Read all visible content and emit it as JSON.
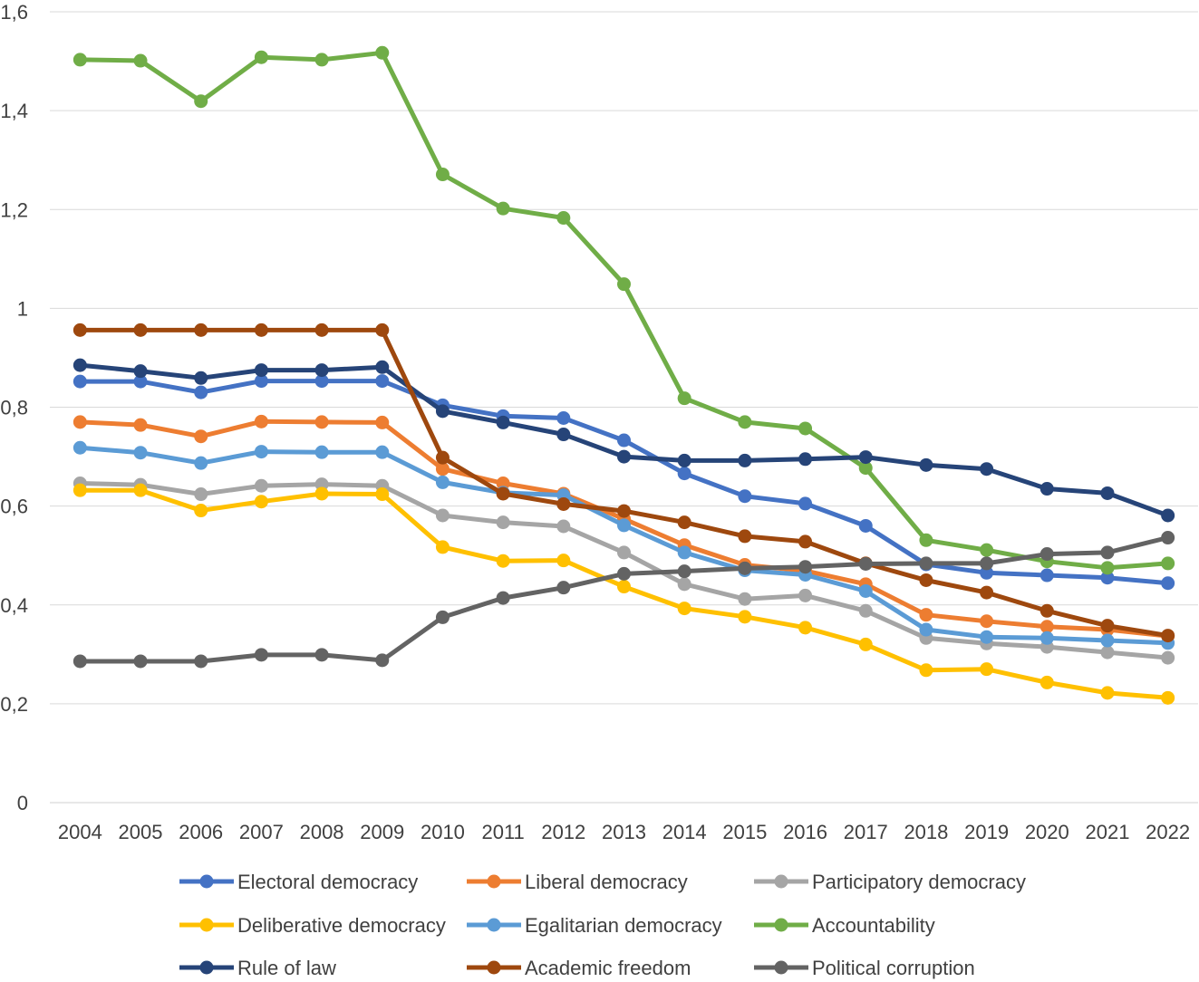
{
  "chart_data": {
    "type": "line",
    "title": "",
    "xlabel": "",
    "ylabel": "",
    "ylim": [
      0,
      1.6
    ],
    "y_ticks": [
      "0",
      "0,2",
      "0,4",
      "0,6",
      "0,8",
      "1",
      "1,2",
      "1,4",
      "1,6"
    ],
    "grid": true,
    "legend_position": "bottom",
    "categories": [
      "2004",
      "2005",
      "2006",
      "2007",
      "2008",
      "2009",
      "2010",
      "2011",
      "2012",
      "2013",
      "2014",
      "2015",
      "2016",
      "2017",
      "2018",
      "2019",
      "2020",
      "2021",
      "2022"
    ],
    "series": [
      {
        "name": "Electoral democracy",
        "color": "#4472C4",
        "values": [
          0.852,
          0.852,
          0.83,
          0.853,
          0.853,
          0.853,
          0.804,
          0.782,
          0.778,
          0.733,
          0.666,
          0.62,
          0.605,
          0.56,
          0.482,
          0.465,
          0.46,
          0.455,
          0.444
        ]
      },
      {
        "name": "Liberal democracy",
        "color": "#ED7D31",
        "values": [
          0.77,
          0.764,
          0.741,
          0.771,
          0.77,
          0.769,
          0.675,
          0.646,
          0.625,
          0.574,
          0.521,
          0.481,
          0.469,
          0.442,
          0.38,
          0.367,
          0.356,
          0.35,
          0.337
        ]
      },
      {
        "name": "Participatory democracy",
        "color": "#A5A5A5",
        "values": [
          0.646,
          0.643,
          0.624,
          0.641,
          0.644,
          0.641,
          0.581,
          0.567,
          0.559,
          0.506,
          0.442,
          0.412,
          0.419,
          0.388,
          0.333,
          0.322,
          0.315,
          0.304,
          0.293
        ]
      },
      {
        "name": "Deliberative democracy",
        "color": "#FFC000",
        "values": [
          0.632,
          0.632,
          0.591,
          0.609,
          0.625,
          0.624,
          0.517,
          0.489,
          0.49,
          0.437,
          0.393,
          0.376,
          0.354,
          0.32,
          0.268,
          0.27,
          0.243,
          0.222,
          0.212
        ]
      },
      {
        "name": "Egalitarian democracy",
        "color": "#5B9BD5",
        "values": [
          0.718,
          0.708,
          0.687,
          0.71,
          0.709,
          0.709,
          0.648,
          0.627,
          0.622,
          0.561,
          0.506,
          0.47,
          0.461,
          0.428,
          0.35,
          0.335,
          0.333,
          0.328,
          0.323
        ]
      },
      {
        "name": "Accountability",
        "color": "#70AD47",
        "values": [
          1.503,
          1.501,
          1.419,
          1.508,
          1.503,
          1.517,
          1.271,
          1.202,
          1.183,
          1.049,
          0.818,
          0.77,
          0.757,
          0.677,
          0.531,
          0.511,
          0.488,
          0.475,
          0.484
        ]
      },
      {
        "name": "Rule of law",
        "color": "#264478",
        "values": [
          0.885,
          0.873,
          0.859,
          0.875,
          0.875,
          0.881,
          0.792,
          0.769,
          0.745,
          0.7,
          0.692,
          0.692,
          0.695,
          0.699,
          0.683,
          0.675,
          0.635,
          0.626,
          0.581
        ]
      },
      {
        "name": "Academic freedom",
        "color": "#9E480E",
        "values": [
          0.956,
          0.956,
          0.956,
          0.956,
          0.956,
          0.956,
          0.698,
          0.625,
          0.604,
          0.59,
          0.567,
          0.539,
          0.528,
          0.484,
          0.45,
          0.425,
          0.388,
          0.358,
          0.338
        ]
      },
      {
        "name": "Political corruption",
        "color": "#636363",
        "values": [
          0.286,
          0.286,
          0.286,
          0.299,
          0.299,
          0.288,
          0.375,
          0.414,
          0.435,
          0.463,
          0.468,
          0.474,
          0.477,
          0.483,
          0.484,
          0.484,
          0.503,
          0.506,
          0.536
        ]
      }
    ]
  }
}
